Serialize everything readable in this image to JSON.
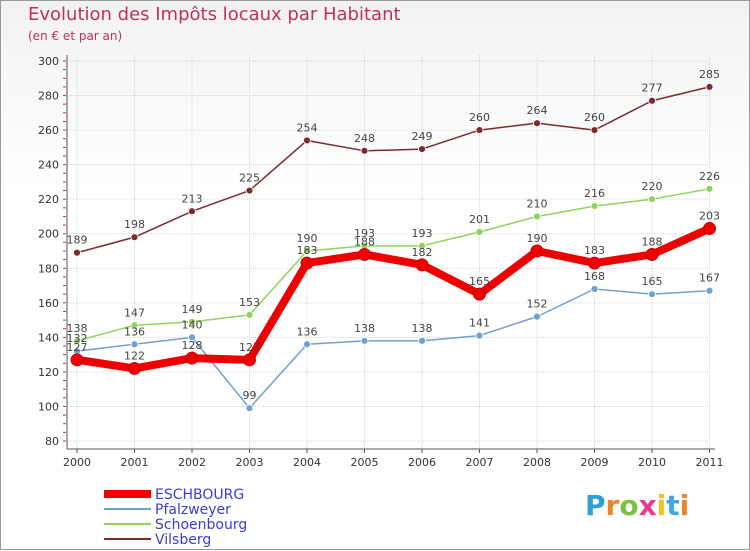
{
  "title": "Evolution des Impôts locaux par Habitant",
  "subtitle": "(en € et par an)",
  "logo": {
    "text": "Proxiti",
    "letter_colors": [
      "#2e9fd8",
      "#e8862a",
      "#7cc242",
      "#e83a8e",
      "#f2c21b",
      "#3fa9e0",
      "#e8862a"
    ]
  },
  "chart_data": {
    "type": "line",
    "title": "Evolution des Impôts locaux par Habitant",
    "subtitle": "(en € et par an)",
    "xlabel": "",
    "ylabel": "",
    "ylim": [
      80,
      300
    ],
    "yticks": [
      80,
      100,
      120,
      140,
      160,
      180,
      200,
      220,
      240,
      260,
      280,
      300
    ],
    "categories": [
      "2000",
      "2001",
      "2002",
      "2003",
      "2004",
      "2005",
      "2006",
      "2007",
      "2008",
      "2009",
      "2010",
      "2011"
    ],
    "grid": true,
    "legend_position": "bottom-left",
    "series": [
      {
        "name": "Vilsberg",
        "color": "#7b2a2e",
        "values": [
          189,
          198,
          213,
          225,
          254,
          248,
          249,
          260,
          264,
          260,
          277,
          285
        ]
      },
      {
        "name": "Schoenbourg",
        "color": "#8fd45a",
        "values": [
          138,
          147,
          149,
          153,
          190,
          193,
          193,
          201,
          210,
          216,
          220,
          226
        ]
      },
      {
        "name": "Pfalzweyer",
        "color": "#6fa0d0",
        "values": [
          132,
          136,
          140,
          99,
          136,
          138,
          138,
          141,
          152,
          168,
          165,
          167
        ]
      },
      {
        "name": "ESCHBOURG",
        "color": "#ee0000",
        "values": [
          127,
          122,
          128,
          127,
          183,
          188,
          182,
          165,
          190,
          183,
          188,
          203
        ]
      }
    ],
    "legend_order": [
      "ESCHBOURG",
      "Pfalzweyer",
      "Schoenbourg",
      "Vilsberg"
    ]
  }
}
